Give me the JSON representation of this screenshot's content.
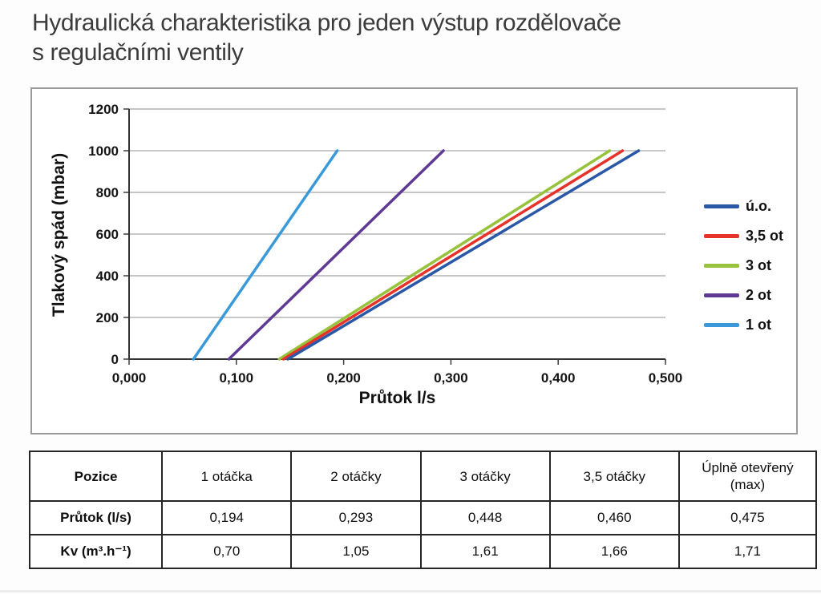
{
  "title": {
    "line1": "Hydraulická charakteristika pro jeden výstup rozdělovače",
    "line2": "s regulačními ventily"
  },
  "chart_data": {
    "type": "line",
    "title": "",
    "xlabel": "Průtok l/s",
    "ylabel": "Tlakový spád (mbar)",
    "xlim": [
      0,
      0.5
    ],
    "ylim": [
      0,
      1200
    ],
    "x_ticks": [
      "0,000",
      "0,100",
      "0,200",
      "0,300",
      "0,400",
      "0,500"
    ],
    "x_tick_values": [
      0,
      0.1,
      0.2,
      0.3,
      0.4,
      0.5
    ],
    "y_ticks": [
      "0",
      "200",
      "400",
      "600",
      "800",
      "1000",
      "1200"
    ],
    "y_tick_values": [
      0,
      200,
      400,
      600,
      800,
      1000,
      1200
    ],
    "grid": "horizontal-only",
    "legend_position": "right-outside",
    "series": [
      {
        "name": "ú.o.",
        "color": "#2b57a7",
        "points": [
          [
            0.148,
            0
          ],
          [
            0.475,
            1000
          ]
        ]
      },
      {
        "name": "3,5 ot",
        "color": "#e63229",
        "points": [
          [
            0.144,
            0
          ],
          [
            0.46,
            1000
          ]
        ]
      },
      {
        "name": "3 ot",
        "color": "#97c23c",
        "points": [
          [
            0.14,
            0
          ],
          [
            0.448,
            1000
          ]
        ]
      },
      {
        "name": "2 ot",
        "color": "#5f3a94",
        "points": [
          [
            0.093,
            0
          ],
          [
            0.293,
            1000
          ]
        ]
      },
      {
        "name": "1 ot",
        "color": "#3a9ad9",
        "points": [
          [
            0.06,
            0
          ],
          [
            0.194,
            1000
          ]
        ]
      }
    ]
  },
  "table": {
    "columns": [
      "Pozice",
      "1 otáčka",
      "2 otáčky",
      "3 otáčky",
      "3,5 otáčky",
      "Úplně otevřený (max)"
    ],
    "rows": [
      {
        "label": "Průtok (l/s)",
        "values": [
          "0,194",
          "0,293",
          "0,448",
          "0,460",
          "0,475"
        ]
      },
      {
        "label": "Kv (m³.h⁻¹)",
        "values": [
          "0,70",
          "1,05",
          "1,61",
          "1,66",
          "1,71"
        ]
      }
    ]
  }
}
